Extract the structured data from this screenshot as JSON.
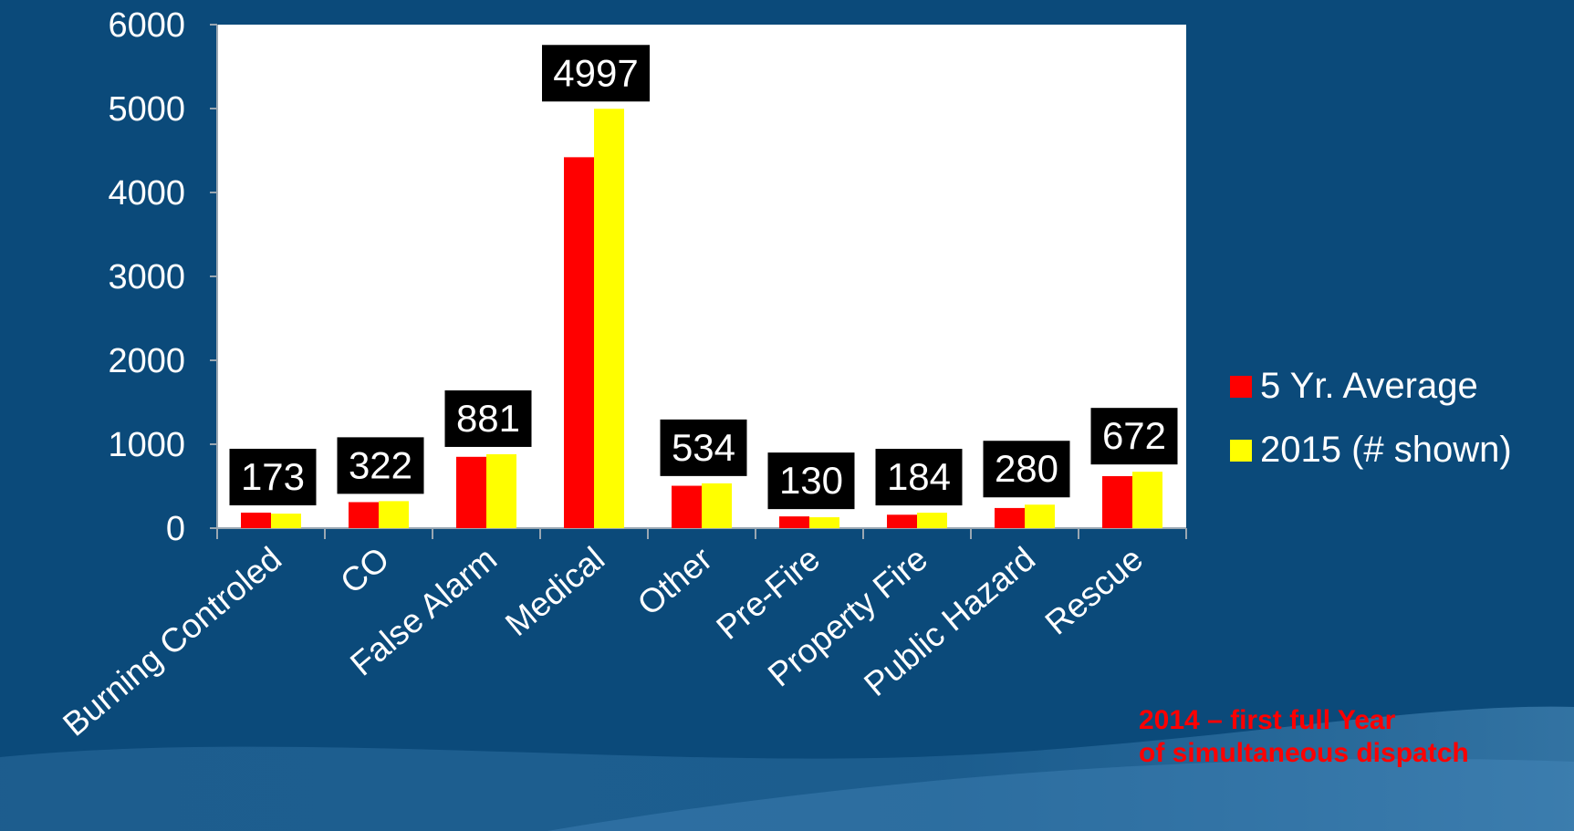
{
  "colors": {
    "background": "#0b4a7a",
    "plot_area": "#ffffff",
    "series_5yr": "#ff0000",
    "series_2015": "#ffff00",
    "label_box": "#000000",
    "text": "#ffffff",
    "note": "#ff0000"
  },
  "chart_data": {
    "type": "bar",
    "title": "",
    "xlabel": "",
    "ylabel": "",
    "ylim": [
      0,
      6000
    ],
    "yticks": [
      0,
      1000,
      2000,
      3000,
      4000,
      5000,
      6000
    ],
    "categories": [
      "Burning Controled",
      "CO",
      "False Alarm",
      "Medical",
      "Other",
      "Pre-Fire",
      "Property Fire",
      "Public Hazard",
      "Rescue"
    ],
    "series": [
      {
        "name": "5 Yr. Average",
        "color": "#ff0000",
        "values": [
          185,
          310,
          850,
          4420,
          505,
          140,
          160,
          240,
          620
        ]
      },
      {
        "name": "2015 (# shown)",
        "color": "#ffff00",
        "values": [
          173,
          322,
          881,
          4997,
          534,
          130,
          184,
          280,
          672
        ]
      }
    ],
    "data_labels": [
      "173",
      "322",
      "881",
      "4997",
      "534",
      "130",
      "184",
      "280",
      "672"
    ],
    "legend_position": "right",
    "grid": false
  },
  "note": {
    "line1": "2014 – first full Year",
    "line2": "of simultaneous dispatch"
  }
}
